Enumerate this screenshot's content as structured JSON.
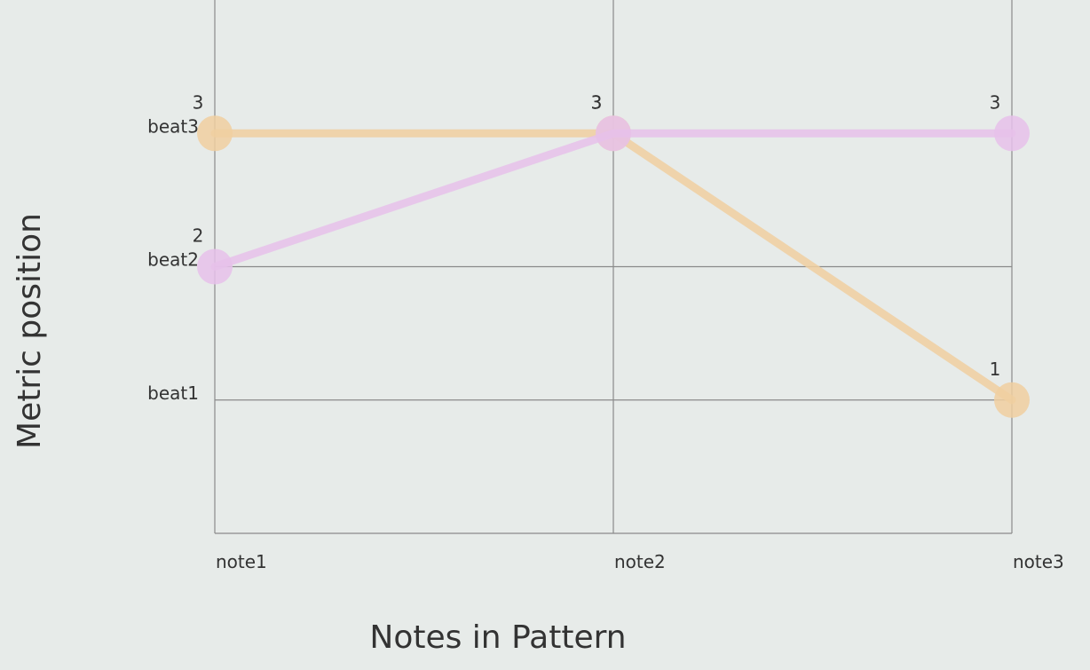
{
  "chart_data": {
    "type": "line",
    "title": "",
    "xlabel": "Notes in Pattern",
    "ylabel": "Metric position",
    "categories": [
      "note1",
      "note2",
      "note3"
    ],
    "y_ticks": [
      {
        "value": 1,
        "label": "beat1"
      },
      {
        "value": 2,
        "label": "beat2"
      },
      {
        "value": 3,
        "label": "beat3"
      }
    ],
    "ylim": [
      0,
      4
    ],
    "grid": true,
    "legend": "none",
    "series": [
      {
        "color": "#f0cfa0",
        "values": [
          3,
          3,
          1
        ],
        "labels": [
          "3",
          "3",
          "1"
        ]
      },
      {
        "color": "#e6c1ea",
        "values": [
          2,
          3,
          3
        ],
        "labels": [
          "2",
          "3",
          "3"
        ]
      }
    ]
  }
}
